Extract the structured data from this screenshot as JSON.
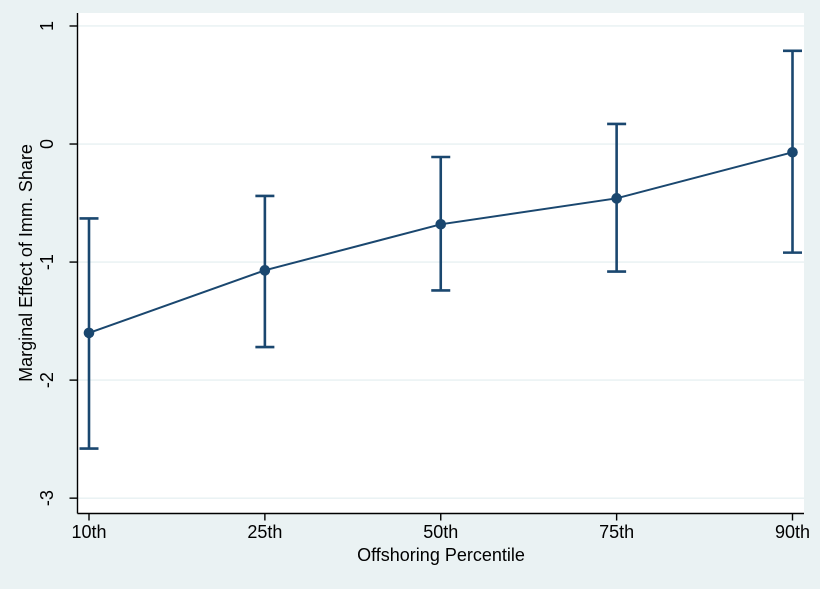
{
  "chart_data": {
    "type": "line",
    "title": "",
    "xlabel": "Offshoring Percentile",
    "ylabel": "Marginal Effect of Imm. Share",
    "categories": [
      "10th",
      "25th",
      "50th",
      "75th",
      "90th"
    ],
    "series": [
      {
        "values": [
          -1.6,
          -1.07,
          -0.68,
          -0.46,
          -0.07
        ],
        "ci_upper": [
          -0.63,
          -0.44,
          -0.11,
          0.17,
          0.79
        ],
        "ci_lower": [
          -2.58,
          -1.72,
          -1.24,
          -1.08,
          -0.92
        ]
      }
    ],
    "y_ticks": [
      1,
      0,
      -1,
      -2,
      -3
    ],
    "y_tick_labels": [
      "1",
      "0",
      "-1",
      "-2",
      "-3"
    ],
    "ylim": [
      -3.13,
      1.11
    ],
    "grid": true,
    "legend": "none",
    "error_bars": true,
    "marker": "circle"
  },
  "colors": {
    "series": "#1a476f",
    "background": "#eaf2f3",
    "plot_background": "#ffffff",
    "gridline": "#e7f0f2",
    "axis": "#000000",
    "text": "#000000"
  }
}
